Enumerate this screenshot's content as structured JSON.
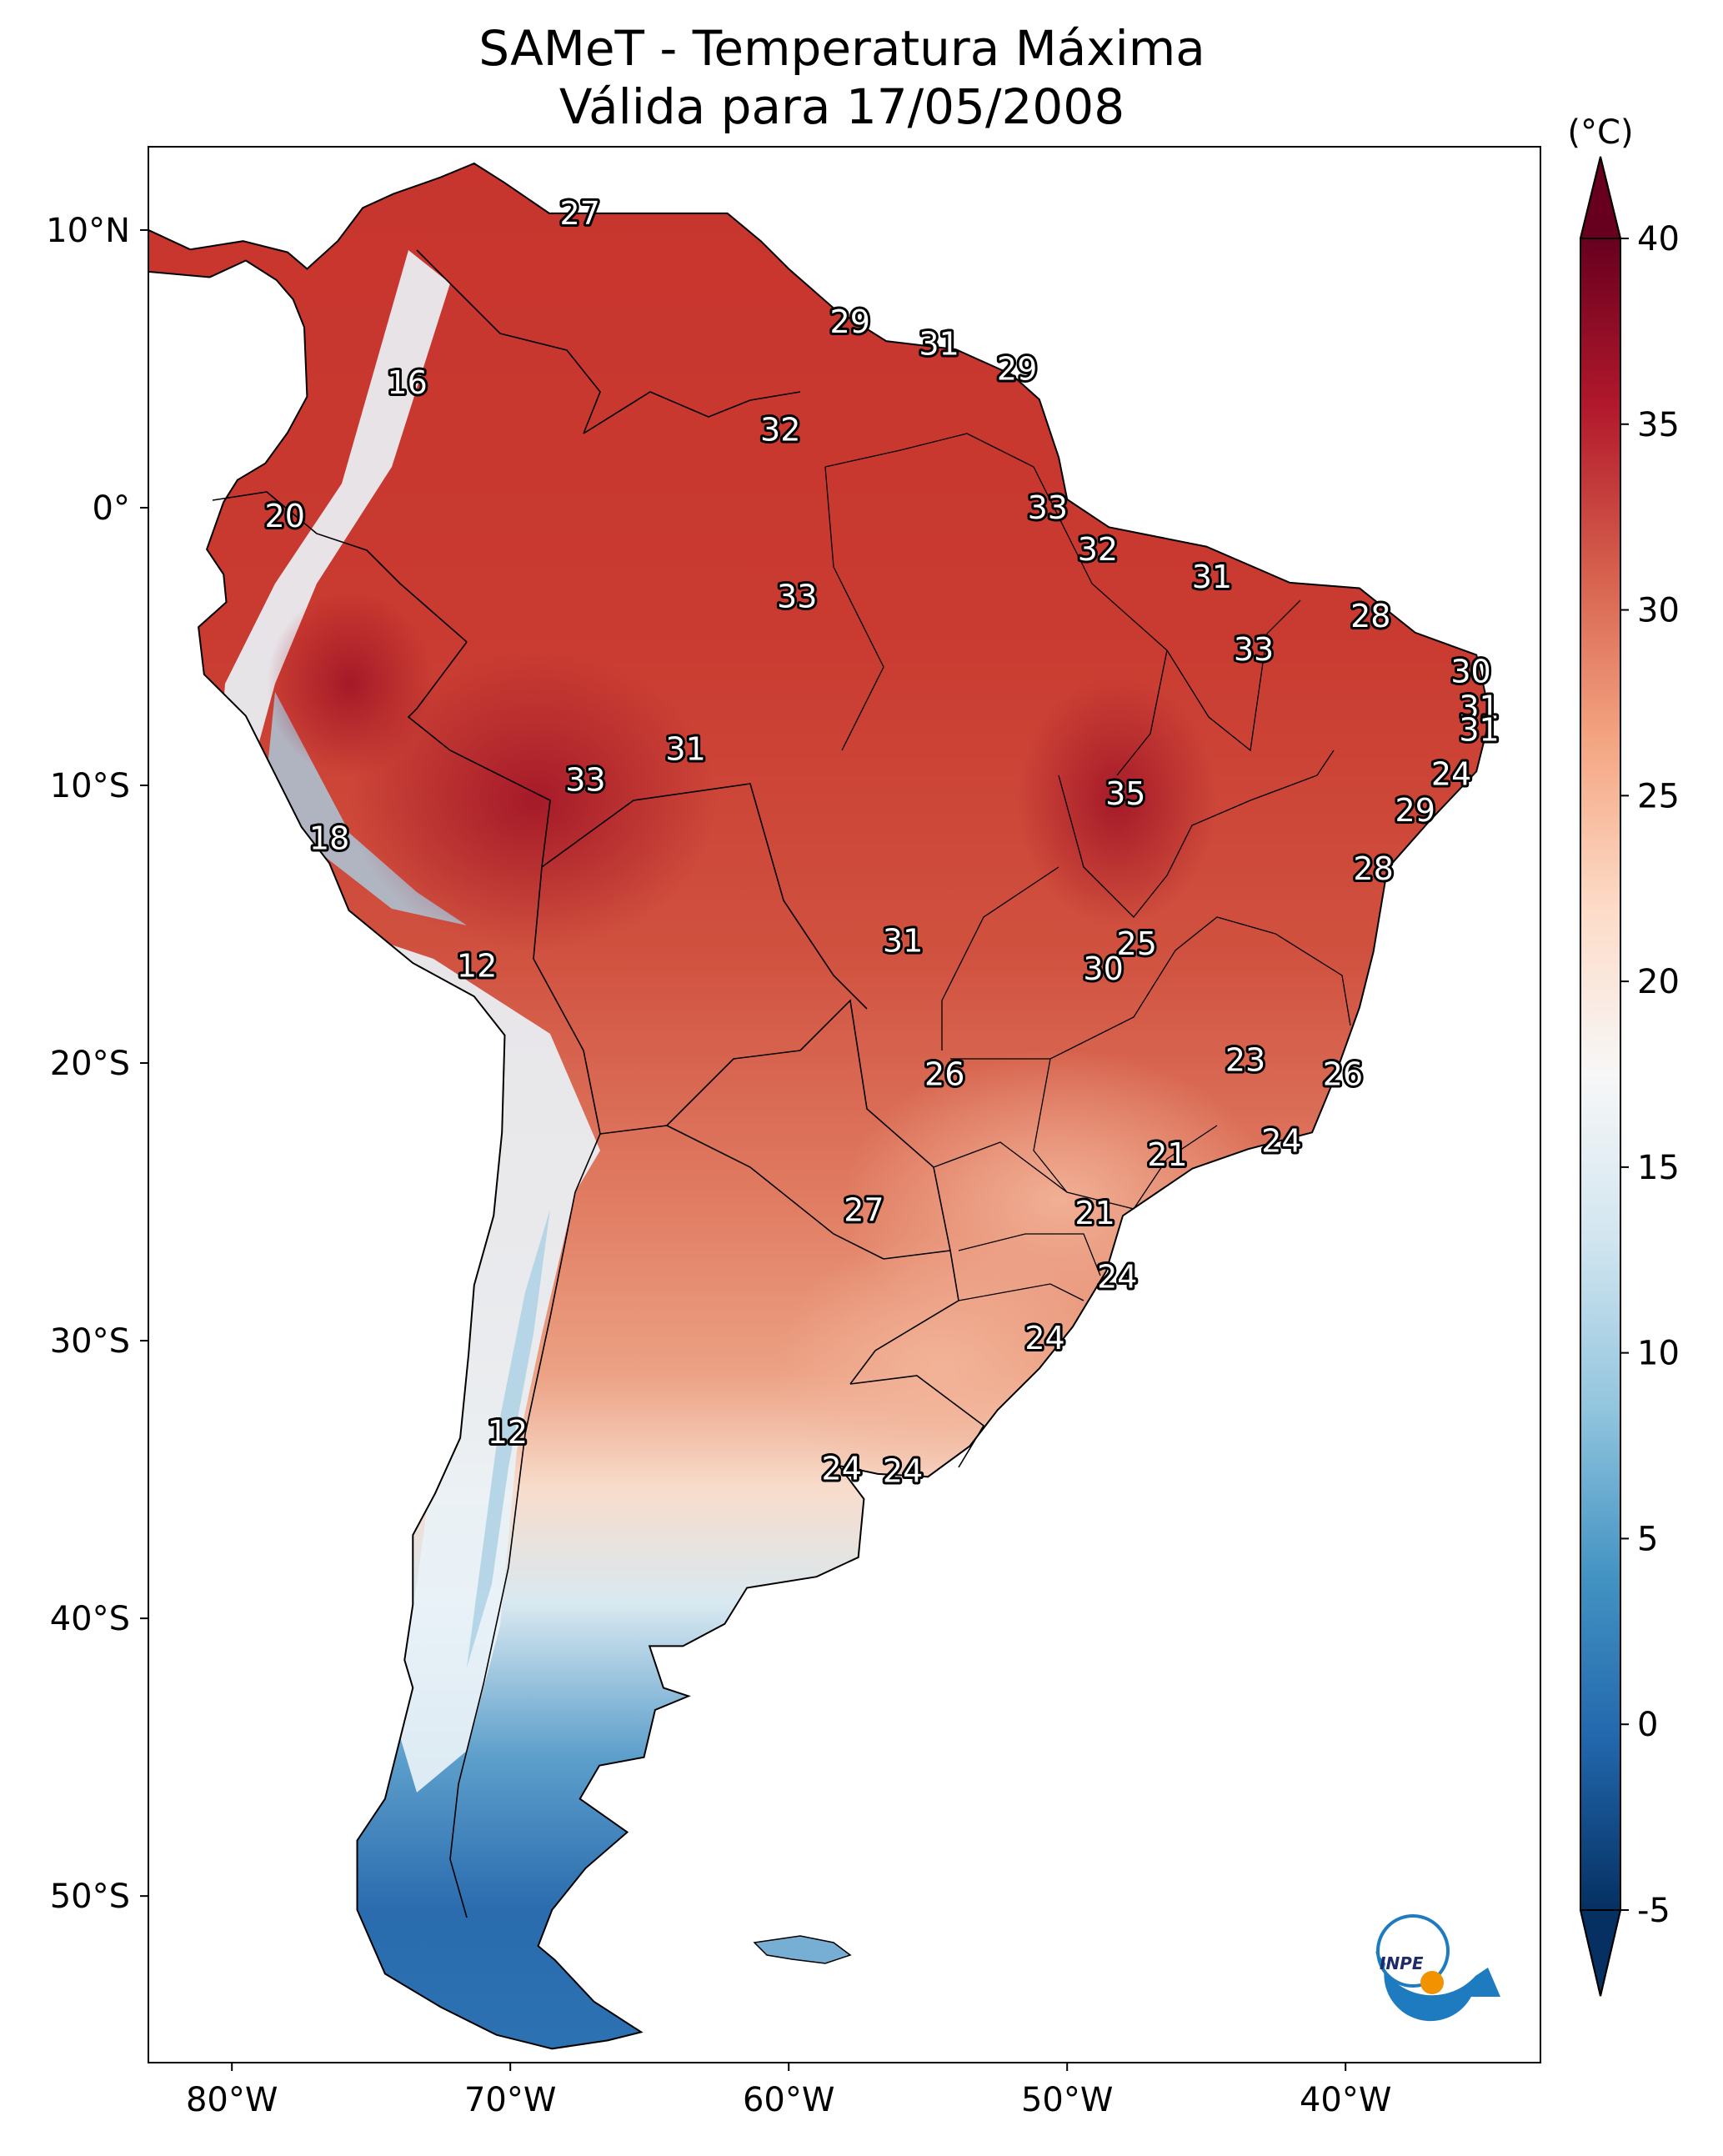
{
  "title": {
    "line1": "SAMeT - Temperatura Máxima",
    "line2": "Válida para 17/05/2008"
  },
  "colorbar": {
    "unit_label": "(°C)",
    "min": -5,
    "max": 40,
    "ticks": [
      "40",
      "35",
      "30",
      "25",
      "20",
      "15",
      "10",
      "5",
      "0",
      "-5"
    ],
    "colors": [
      "#053061",
      "#2166ac",
      "#4393c3",
      "#92c5de",
      "#d1e5f0",
      "#f7f7f7",
      "#fddbc7",
      "#f4a582",
      "#d6604d",
      "#b2182b",
      "#67001f"
    ]
  },
  "axes": {
    "lat_range": [
      -56,
      13
    ],
    "lon_range": [
      -83,
      -33
    ],
    "y_ticks": [
      {
        "label": "10°N",
        "lat": 10
      },
      {
        "label": "0°",
        "lat": 0
      },
      {
        "label": "10°S",
        "lat": -10
      },
      {
        "label": "20°S",
        "lat": -20
      },
      {
        "label": "30°S",
        "lat": -30
      },
      {
        "label": "40°S",
        "lat": -40
      },
      {
        "label": "50°S",
        "lat": -50
      }
    ],
    "x_ticks": [
      {
        "label": "80°W",
        "lon": -80
      },
      {
        "label": "70°W",
        "lon": -70
      },
      {
        "label": "60°W",
        "lon": -60
      },
      {
        "label": "50°W",
        "lon": -50
      },
      {
        "label": "40°W",
        "lon": -40
      }
    ]
  },
  "temperature_labels": [
    {
      "text": "27",
      "lon": -67.5,
      "lat": 10.6
    },
    {
      "text": "29",
      "lon": -57.8,
      "lat": 6.7
    },
    {
      "text": "31",
      "lon": -54.6,
      "lat": 5.9
    },
    {
      "text": "29",
      "lon": -51.8,
      "lat": 5.0
    },
    {
      "text": "16",
      "lon": -73.7,
      "lat": 4.5
    },
    {
      "text": "32",
      "lon": -60.3,
      "lat": 2.8
    },
    {
      "text": "33",
      "lon": -50.7,
      "lat": 0.0
    },
    {
      "text": "20",
      "lon": -78.1,
      "lat": -0.3
    },
    {
      "text": "32",
      "lon": -48.9,
      "lat": -1.5
    },
    {
      "text": "31",
      "lon": -44.8,
      "lat": -2.5
    },
    {
      "text": "33",
      "lon": -59.7,
      "lat": -3.2
    },
    {
      "text": "28",
      "lon": -39.1,
      "lat": -3.9
    },
    {
      "text": "33",
      "lon": -43.3,
      "lat": -5.1
    },
    {
      "text": "30",
      "lon": -35.5,
      "lat": -5.9
    },
    {
      "text": "31",
      "lon": -35.2,
      "lat": -7.2
    },
    {
      "text": "31",
      "lon": -35.2,
      "lat": -8.0
    },
    {
      "text": "31",
      "lon": -63.7,
      "lat": -8.7
    },
    {
      "text": "24",
      "lon": -36.2,
      "lat": -9.6
    },
    {
      "text": "33",
      "lon": -67.3,
      "lat": -9.8
    },
    {
      "text": "35",
      "lon": -47.9,
      "lat": -10.3
    },
    {
      "text": "29",
      "lon": -37.5,
      "lat": -10.9
    },
    {
      "text": "18",
      "lon": -76.5,
      "lat": -11.9
    },
    {
      "text": "28",
      "lon": -39.0,
      "lat": -13.0
    },
    {
      "text": "31",
      "lon": -55.9,
      "lat": -15.6
    },
    {
      "text": "25",
      "lon": -47.5,
      "lat": -15.7
    },
    {
      "text": "30",
      "lon": -48.7,
      "lat": -16.6
    },
    {
      "text": "12",
      "lon": -71.2,
      "lat": -16.5
    },
    {
      "text": "23",
      "lon": -43.6,
      "lat": -19.9
    },
    {
      "text": "26",
      "lon": -54.4,
      "lat": -20.4
    },
    {
      "text": "26",
      "lon": -40.1,
      "lat": -20.4
    },
    {
      "text": "24",
      "lon": -42.3,
      "lat": -22.8
    },
    {
      "text": "21",
      "lon": -46.4,
      "lat": -23.3
    },
    {
      "text": "27",
      "lon": -57.3,
      "lat": -25.3
    },
    {
      "text": "21",
      "lon": -49.0,
      "lat": -25.4
    },
    {
      "text": "24",
      "lon": -48.2,
      "lat": -27.7
    },
    {
      "text": "24",
      "lon": -50.8,
      "lat": -29.9
    },
    {
      "text": "12",
      "lon": -70.1,
      "lat": -33.3
    },
    {
      "text": "24",
      "lon": -58.1,
      "lat": -34.6
    },
    {
      "text": "24",
      "lon": -55.9,
      "lat": -34.7
    }
  ],
  "logo": {
    "text": "INPE"
  }
}
